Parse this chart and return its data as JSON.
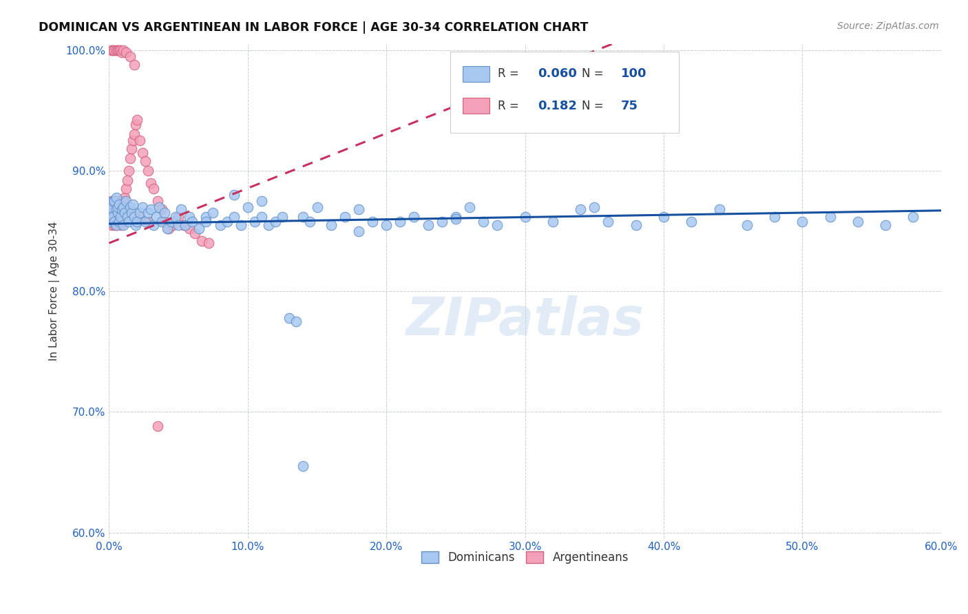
{
  "title": "DOMINICAN VS ARGENTINEAN IN LABOR FORCE | AGE 30-34 CORRELATION CHART",
  "source": "Source: ZipAtlas.com",
  "ylabel": "In Labor Force | Age 30-34",
  "xlim": [
    0.0,
    0.6
  ],
  "ylim": [
    0.595,
    1.005
  ],
  "xticks": [
    0.0,
    0.1,
    0.2,
    0.3,
    0.4,
    0.5,
    0.6
  ],
  "xticklabels": [
    "0.0%",
    "10.0%",
    "20.0%",
    "30.0%",
    "40.0%",
    "50.0%",
    "60.0%"
  ],
  "yticks": [
    0.6,
    0.7,
    0.8,
    0.9,
    1.0
  ],
  "yticklabels": [
    "60.0%",
    "70.0%",
    "80.0%",
    "90.0%",
    "100.0%"
  ],
  "dominican_color": "#A8C8F0",
  "argentinean_color": "#F4A0B8",
  "dominican_edge": "#6090C8",
  "argentinean_edge": "#D06080",
  "trend_blue": "#1550A0",
  "trend_pink": "#C83060",
  "watermark": "ZIPatlas",
  "legend_R_dominican": "0.060",
  "legend_N_dominican": "100",
  "legend_R_argentinean": "0.182",
  "legend_N_argentinean": "75",
  "dominican_x": [
    0.001,
    0.001,
    0.002,
    0.002,
    0.003,
    0.003,
    0.004,
    0.004,
    0.005,
    0.005,
    0.005,
    0.006,
    0.006,
    0.007,
    0.007,
    0.008,
    0.009,
    0.01,
    0.01,
    0.011,
    0.012,
    0.013,
    0.014,
    0.015,
    0.016,
    0.017,
    0.018,
    0.019,
    0.02,
    0.022,
    0.024,
    0.026,
    0.028,
    0.03,
    0.032,
    0.034,
    0.036,
    0.038,
    0.04,
    0.042,
    0.045,
    0.048,
    0.05,
    0.052,
    0.055,
    0.058,
    0.06,
    0.065,
    0.07,
    0.075,
    0.08,
    0.085,
    0.09,
    0.095,
    0.1,
    0.105,
    0.11,
    0.115,
    0.12,
    0.125,
    0.13,
    0.135,
    0.14,
    0.145,
    0.15,
    0.16,
    0.17,
    0.18,
    0.19,
    0.2,
    0.21,
    0.22,
    0.23,
    0.24,
    0.25,
    0.26,
    0.27,
    0.28,
    0.3,
    0.32,
    0.34,
    0.36,
    0.38,
    0.4,
    0.42,
    0.44,
    0.46,
    0.48,
    0.5,
    0.52,
    0.54,
    0.56,
    0.58,
    0.35,
    0.25,
    0.18,
    0.14,
    0.11,
    0.09,
    0.07
  ],
  "dominican_y": [
    0.872,
    0.858,
    0.865,
    0.87,
    0.875,
    0.862,
    0.858,
    0.875,
    0.868,
    0.855,
    0.878,
    0.865,
    0.87,
    0.858,
    0.872,
    0.862,
    0.868,
    0.855,
    0.87,
    0.865,
    0.875,
    0.862,
    0.858,
    0.87,
    0.865,
    0.872,
    0.862,
    0.855,
    0.858,
    0.865,
    0.87,
    0.858,
    0.865,
    0.868,
    0.855,
    0.862,
    0.87,
    0.858,
    0.865,
    0.852,
    0.858,
    0.862,
    0.855,
    0.868,
    0.855,
    0.862,
    0.858,
    0.852,
    0.862,
    0.865,
    0.855,
    0.858,
    0.862,
    0.855,
    0.87,
    0.858,
    0.862,
    0.855,
    0.858,
    0.862,
    0.778,
    0.775,
    0.862,
    0.858,
    0.87,
    0.855,
    0.862,
    0.868,
    0.858,
    0.855,
    0.858,
    0.862,
    0.855,
    0.858,
    0.862,
    0.87,
    0.858,
    0.855,
    0.862,
    0.858,
    0.868,
    0.858,
    0.855,
    0.862,
    0.858,
    0.868,
    0.855,
    0.862,
    0.858,
    0.862,
    0.858,
    0.855,
    0.862,
    0.87,
    0.86,
    0.85,
    0.655,
    0.875,
    0.88,
    0.858
  ],
  "argentinean_x": [
    0.001,
    0.001,
    0.001,
    0.002,
    0.002,
    0.002,
    0.003,
    0.003,
    0.003,
    0.004,
    0.004,
    0.004,
    0.004,
    0.005,
    0.005,
    0.005,
    0.005,
    0.005,
    0.005,
    0.005,
    0.005,
    0.006,
    0.006,
    0.006,
    0.007,
    0.007,
    0.008,
    0.008,
    0.009,
    0.009,
    0.01,
    0.01,
    0.01,
    0.011,
    0.012,
    0.013,
    0.014,
    0.015,
    0.016,
    0.017,
    0.018,
    0.019,
    0.02,
    0.022,
    0.024,
    0.026,
    0.028,
    0.03,
    0.032,
    0.035,
    0.038,
    0.04,
    0.043,
    0.046,
    0.05,
    0.054,
    0.058,
    0.062,
    0.067,
    0.072,
    0.002,
    0.003,
    0.004,
    0.005,
    0.006,
    0.007,
    0.008,
    0.009,
    0.01,
    0.012,
    0.015,
    0.018,
    0.022,
    0.028,
    0.035
  ],
  "argentinean_y": [
    0.87,
    0.858,
    0.865,
    0.875,
    0.868,
    0.855,
    0.862,
    0.872,
    0.858,
    0.868,
    0.875,
    0.862,
    0.855,
    0.87,
    0.865,
    0.862,
    0.858,
    0.875,
    0.868,
    0.855,
    0.862,
    0.868,
    0.875,
    0.858,
    0.862,
    0.87,
    0.868,
    0.855,
    0.862,
    0.87,
    0.865,
    0.875,
    0.858,
    0.878,
    0.885,
    0.892,
    0.9,
    0.91,
    0.918,
    0.925,
    0.93,
    0.938,
    0.942,
    0.925,
    0.915,
    0.908,
    0.9,
    0.89,
    0.885,
    0.875,
    0.868,
    0.858,
    0.852,
    0.855,
    0.862,
    0.855,
    0.852,
    0.848,
    0.842,
    0.84,
    1.0,
    1.0,
    1.0,
    1.0,
    1.0,
    1.0,
    1.0,
    0.998,
    1.0,
    0.998,
    0.995,
    0.988,
    0.862,
    0.858,
    0.688
  ]
}
